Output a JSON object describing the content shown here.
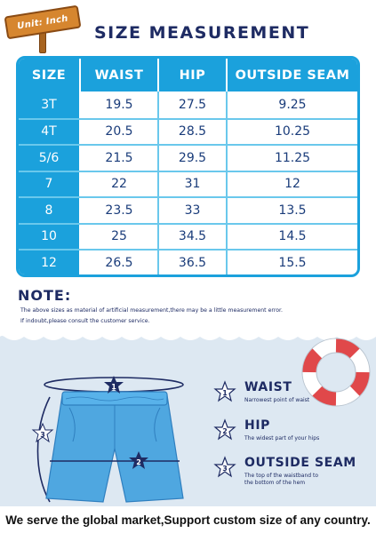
{
  "sign": {
    "text": "Unit: Inch"
  },
  "title": "SIZE MEASUREMENT",
  "table": {
    "headers": [
      "SIZE",
      "WAIST",
      "HIP",
      "OUTSIDE SEAM"
    ],
    "rows": [
      [
        "3T",
        "19.5",
        "27.5",
        "9.25"
      ],
      [
        "4T",
        "20.5",
        "28.5",
        "10.25"
      ],
      [
        "5/6",
        "21.5",
        "29.5",
        "11.25"
      ],
      [
        "7",
        "22",
        "31",
        "12"
      ],
      [
        "8",
        "23.5",
        "33",
        "13.5"
      ],
      [
        "10",
        "25",
        "34.5",
        "14.5"
      ],
      [
        "12",
        "26.5",
        "36.5",
        "15.5"
      ]
    ]
  },
  "note": {
    "title": "NOTE:",
    "line1": "The above sizes as material of artificial measurement,there may be a little measurement error.",
    "line2": "If indoubt,please consult the customer service."
  },
  "diagram": {
    "markers": [
      "1",
      "2",
      "3"
    ]
  },
  "legend": {
    "waist": {
      "number": "1",
      "title": "WAIST",
      "desc": "Narrowest point of waist"
    },
    "hip": {
      "number": "2",
      "title": "HIP",
      "desc": "The widest part of your hips"
    },
    "seam": {
      "number": "3",
      "title": "OUTSIDE SEAM",
      "desc1": "The top of the waistband to",
      "desc2": "the bottom of the hem"
    }
  },
  "footer": "We serve the global market,Support custom size of any country.",
  "colors": {
    "accent": "#1ba1dc",
    "navy": "#1e2b63",
    "sign": "#d6862f",
    "ring_red": "#e0484a",
    "shorts": "#4fa7e0"
  }
}
